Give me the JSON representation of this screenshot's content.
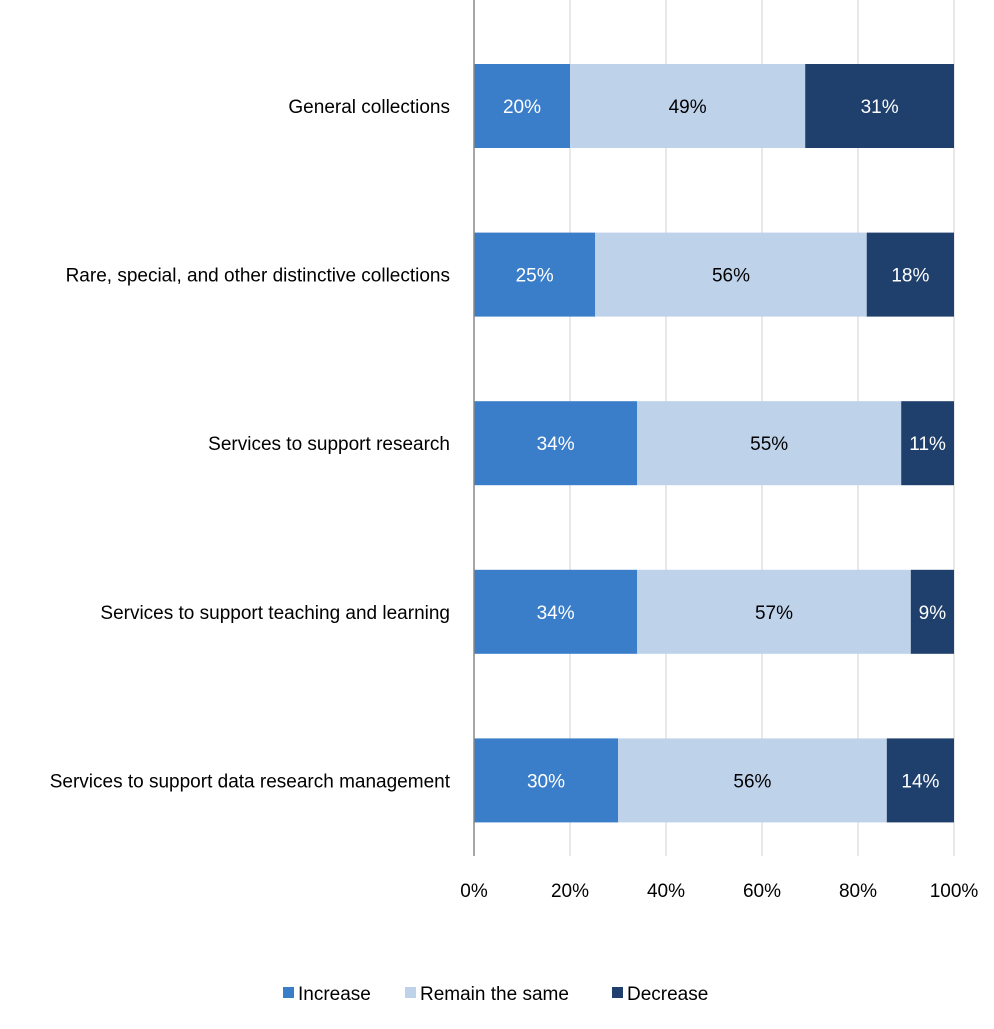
{
  "chart_data": {
    "type": "bar",
    "orientation": "horizontal",
    "stacked": "100%",
    "categories": [
      "General collections",
      "Rare, special, and other distinctive collections",
      "Services to support research",
      "Services to support teaching and learning",
      "Services to support data research management"
    ],
    "series": [
      {
        "name": "Increase",
        "color": "#3A7DC9",
        "label_color": "#ffffff",
        "values": [
          20,
          25,
          34,
          34,
          30
        ]
      },
      {
        "name": "Remain the same",
        "color": "#BED2EA",
        "label_color": "#000000",
        "values": [
          49,
          56,
          55,
          57,
          56
        ]
      },
      {
        "name": "Decrease",
        "color": "#1F3F6C",
        "label_color": "#ffffff",
        "values": [
          31,
          18,
          11,
          9,
          14
        ]
      }
    ],
    "xlim": [
      0,
      100
    ],
    "x_ticks": [
      "0%",
      "20%",
      "40%",
      "60%",
      "80%",
      "100%"
    ],
    "grid": "vertical",
    "legend": "bottom"
  }
}
